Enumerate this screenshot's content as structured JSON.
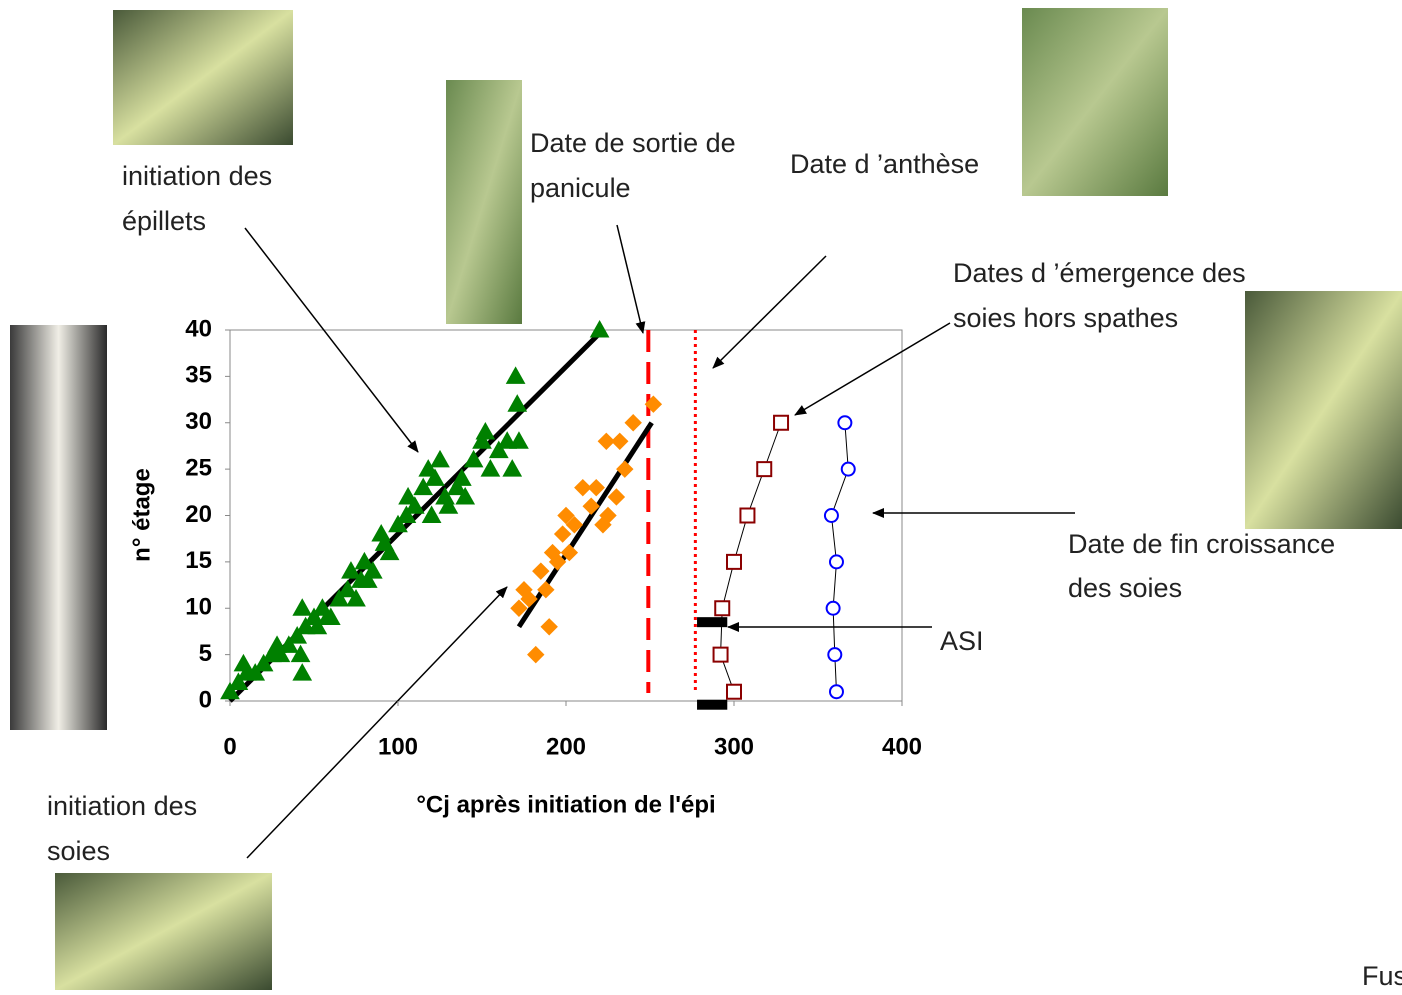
{
  "chart_data": {
    "type": "scatter",
    "xlabel": "°Cj après initiation de l'épi",
    "ylabel": "n° étage",
    "xlim": [
      0,
      400
    ],
    "ylim": [
      0,
      40
    ],
    "xticks": [
      0,
      100,
      200,
      300,
      400
    ],
    "yticks": [
      0,
      5,
      10,
      15,
      20,
      25,
      30,
      35,
      40
    ],
    "grid": false,
    "series": [
      {
        "color": "#008000",
        "marker": "triangle",
        "filled": true,
        "connect": false,
        "x": [
          0,
          5,
          8,
          10,
          15,
          20,
          25,
          28,
          30,
          35,
          40,
          42,
          43,
          43,
          45,
          50,
          52,
          55,
          58,
          60,
          65,
          70,
          72,
          75,
          78,
          80,
          82,
          85,
          90,
          92,
          95,
          100,
          105,
          106,
          110,
          115,
          118,
          120,
          122,
          125,
          128,
          130,
          135,
          138,
          140,
          145,
          150,
          152,
          155,
          160,
          165,
          168,
          170,
          171,
          172,
          220
        ],
        "values": [
          1,
          2,
          4,
          3,
          3,
          4,
          5,
          6,
          5,
          6,
          7,
          5,
          3,
          10,
          8,
          9,
          8,
          10,
          9,
          9,
          11,
          12,
          14,
          11,
          13,
          15,
          13,
          14,
          18,
          17,
          16,
          19,
          20,
          22,
          21,
          23,
          25,
          20,
          24,
          26,
          22,
          21,
          23,
          24,
          22,
          26,
          28,
          29,
          25,
          27,
          28,
          25,
          35,
          32,
          28,
          40
        ]
      },
      {
        "color": "#ff8c00",
        "marker": "diamond",
        "filled": true,
        "connect": false,
        "x": [
          172,
          175,
          178,
          182,
          185,
          188,
          190,
          192,
          195,
          198,
          200,
          202,
          205,
          210,
          215,
          218,
          222,
          224,
          225,
          230,
          232,
          235,
          240,
          252
        ],
        "values": [
          10,
          12,
          11,
          5,
          14,
          12,
          8,
          16,
          15,
          18,
          20,
          16,
          19,
          23,
          21,
          23,
          19,
          28,
          20,
          22,
          28,
          25,
          30,
          32
        ]
      },
      {
        "color": "#8b0000",
        "marker": "square",
        "filled": false,
        "connect": true,
        "x": [
          300,
          292,
          293,
          300,
          308,
          318,
          328
        ],
        "values": [
          1,
          5,
          10,
          15,
          20,
          25,
          30
        ]
      },
      {
        "color": "#0000ff",
        "marker": "circle",
        "filled": false,
        "connect": true,
        "x": [
          361,
          360,
          359,
          361,
          358,
          368,
          366
        ],
        "values": [
          1,
          5,
          10,
          15,
          20,
          25,
          30
        ]
      }
    ],
    "fit_lines": [
      {
        "color": "#000000",
        "x": [
          0,
          222
        ],
        "values": [
          0,
          40
        ]
      },
      {
        "color": "#000000",
        "x": [
          172,
          251
        ],
        "values": [
          8,
          30
        ]
      }
    ],
    "vlines": [
      {
        "color": "#ff0000",
        "style": "dashed",
        "x": 249
      },
      {
        "color": "#ff0000",
        "style": "dotted",
        "x": 277
      }
    ],
    "bars": [
      {
        "color": "#000000",
        "x": [
          278,
          296
        ],
        "value": 8.5
      },
      {
        "color": "#000000",
        "x": [
          278,
          296
        ],
        "value": -0.4
      }
    ]
  },
  "annotations": {
    "epillets": [
      "initiation des",
      "épillets"
    ],
    "panicule": [
      "Date de sortie de",
      "panicule"
    ],
    "anthese": [
      "Date d ’anthèse"
    ],
    "emergence": [
      "Dates d ’émergence des",
      "soies hors spathes"
    ],
    "fin": [
      "Date de fin croissance",
      "des soies"
    ],
    "asi": [
      "ASI"
    ],
    "soies": [
      "initiation des",
      "soies"
    ]
  },
  "footer_fragment": "Fus"
}
